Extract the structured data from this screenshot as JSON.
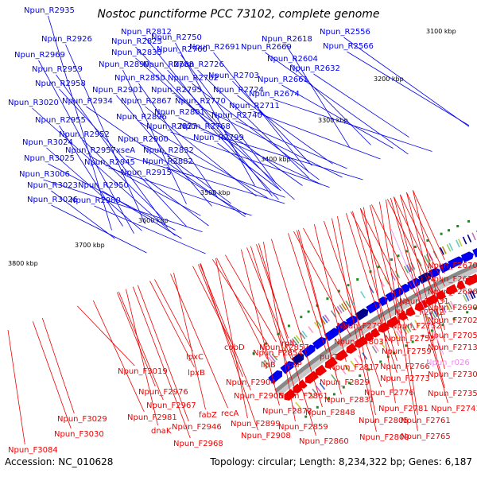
{
  "title": "Nostoc punctiforme PCC 73102, complete genome",
  "footer": {
    "accession": "Accession: NC_010628",
    "summary": "Topology: circular; Length: 8,234,322 bp; Genes: 6,187"
  },
  "colors": {
    "forward": "#0000ee",
    "reverse": "#ee0000",
    "rna": "#ee88ee",
    "backbone": "#888888",
    "marker": "#228822"
  },
  "ticks": [
    "3100 kbp",
    "3200 kbp",
    "3300 kbp",
    "3400 kbp",
    "3500 kbp",
    "3600 kbp",
    "3700 kbp",
    "3800 kbp"
  ],
  "forward_genes": [
    "Npun_R2935",
    "Npun_R2926",
    "Npun_R2969",
    "Npun_R2959",
    "Npun_R2958",
    "Npun_R3020",
    "Npun_R2934",
    "Npun_R2955",
    "Npun_R2952",
    "Npun_R3024",
    "Npun_R2957",
    "Npun_R3025",
    "Npun_R2945",
    "Npun_R3006",
    "Npun_R3023",
    "Npun_R2950",
    "Npun_R3026",
    "Npun_R2980",
    "Npun_R2812",
    "Npun_R2823",
    "Npun_R2835",
    "Npun_R2890",
    "Npun_R2850",
    "Npun_R2901",
    "Npun_R2867",
    "Npun_R2896",
    "Npun_R2900",
    "xseA",
    "Npun_R2915",
    "Npun_R2750",
    "Npun_R2760",
    "Npun_R2788",
    "Npun_R2795",
    "Npun_R2801",
    "Npun_R2827",
    "Npun_R2832",
    "Npun_R2882",
    "Npun_R2691",
    "Npun_R2726",
    "Npun_R2762",
    "Npun_R2770",
    "Npun_R2768",
    "Npun_R2799",
    "Npun_R2703",
    "Npun_R2724",
    "Npun_R2740",
    "Npun_R2711",
    "Npun_R2669",
    "Npun_R2674",
    "Npun_R2618",
    "Npun_R2604",
    "Npun_R2632",
    "Npun_R2661",
    "Npun_R2556",
    "Npun_R2566"
  ],
  "reverse_genes": [
    "Npun_F2670",
    "Npun_F2675",
    "Npun_F2686",
    "Npun_F2690",
    "Npun_F2702",
    "Npun_F2705",
    "Npun_F2713",
    "Npun_F2731",
    "Npun_F2742",
    "Npun_F2752",
    "Npun_F2753",
    "Npun_F2759",
    "Npun_F2730",
    "Npun_F2735",
    "Npun_F2741",
    "Npun_F2761",
    "Npun_F2765",
    "Npun_F2766",
    "Npun_F2773",
    "Npun_F2776",
    "Npun_F2781",
    "Npun_F2805",
    "Npun_F2809",
    "Npun_F2798",
    "Npun_F2803",
    "Npun_F2817",
    "Npun_F2829",
    "Npun_F2831",
    "Npun_F2848",
    "Npun_F2860",
    "Npun_F2859",
    "Npun_F2872",
    "Npun_F2861",
    "Npun_F2857",
    "Npun_F2854",
    "rplI",
    "purT",
    "rpsP",
    "lipB",
    "Npun_F2908",
    "Npun_F2899",
    "cobD",
    "Npun_F2904",
    "Npun_F2905",
    "recA",
    "fabZ",
    "lpxC",
    "lpxB",
    "Npun_F2946",
    "Npun_F2968",
    "dnaK",
    "Npun_F2976",
    "Npun_F2967",
    "Npun_F2981",
    "Npun_F3019",
    "Npun_F3029",
    "Npun_F3030",
    "Npun_F3084"
  ],
  "rna_genes": [
    "Npun_r026"
  ]
}
